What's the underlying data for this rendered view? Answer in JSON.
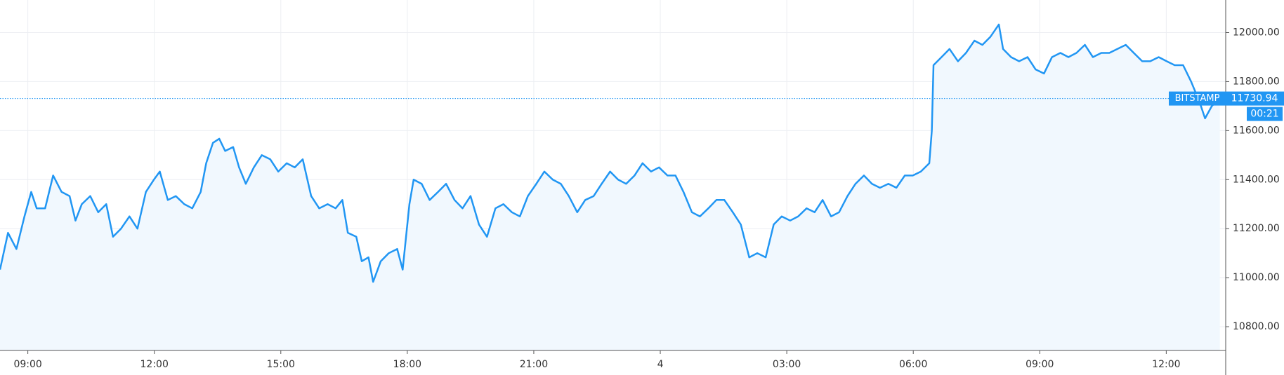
{
  "chart_data": {
    "type": "area",
    "color": "#2196f3",
    "fill": "#f1f8fe",
    "grid": true,
    "exchange": "BITSTAMP",
    "current_price": 11730.94,
    "countdown": "00:21",
    "xlim": [
      -0.66,
      28.41
    ],
    "ylim": [
      10703,
      12133
    ],
    "xticks": [
      {
        "value": 0,
        "label": "09:00"
      },
      {
        "value": 3,
        "label": "12:00"
      },
      {
        "value": 6,
        "label": "15:00"
      },
      {
        "value": 9,
        "label": "18:00"
      },
      {
        "value": 12,
        "label": "21:00"
      },
      {
        "value": 15,
        "label": "4"
      },
      {
        "value": 18,
        "label": "03:00"
      },
      {
        "value": 21,
        "label": "06:00"
      },
      {
        "value": 24,
        "label": "09:00"
      },
      {
        "value": 27,
        "label": "12:00"
      }
    ],
    "yticks": [
      {
        "value": 10800,
        "label": "10800.00"
      },
      {
        "value": 11000,
        "label": "11000.00"
      },
      {
        "value": 11200,
        "label": "11200.00"
      },
      {
        "value": 11400,
        "label": "11400.00"
      },
      {
        "value": 11600,
        "label": "11600.00"
      },
      {
        "value": 11800,
        "label": "11800.00"
      },
      {
        "value": 12000,
        "label": "12000.00"
      }
    ],
    "x": [
      -0.66,
      -0.47,
      -0.27,
      -0.08,
      0.08,
      0.21,
      0.41,
      0.6,
      0.8,
      0.99,
      1.13,
      1.28,
      1.48,
      1.67,
      1.86,
      2.02,
      2.21,
      2.41,
      2.6,
      2.8,
      2.99,
      3.13,
      3.32,
      3.51,
      3.71,
      3.9,
      4.1,
      4.23,
      4.39,
      4.54,
      4.68,
      4.87,
      5.01,
      5.17,
      5.36,
      5.55,
      5.75,
      5.94,
      6.14,
      6.33,
      6.52,
      6.72,
      6.91,
      7.11,
      7.3,
      7.46,
      7.59,
      7.79,
      7.92,
      8.08,
      8.19,
      8.37,
      8.56,
      8.76,
      8.89,
      9.05,
      9.15,
      9.34,
      9.53,
      9.73,
      9.92,
      10.12,
      10.31,
      10.5,
      10.7,
      10.89,
      11.09,
      11.28,
      11.48,
      11.67,
      11.86,
      12.06,
      12.25,
      12.45,
      12.64,
      12.83,
      13.03,
      13.22,
      13.42,
      13.61,
      13.81,
      14.0,
      14.19,
      14.39,
      14.58,
      14.78,
      14.97,
      15.17,
      15.36,
      15.55,
      15.75,
      15.94,
      16.14,
      16.33,
      16.52,
      16.72,
      16.91,
      17.11,
      17.3,
      17.5,
      17.69,
      17.88,
      18.08,
      18.27,
      18.47,
      18.66,
      18.85,
      19.05,
      19.24,
      19.44,
      19.63,
      19.83,
      20.02,
      20.21,
      20.41,
      20.6,
      20.8,
      20.99,
      21.18,
      21.38,
      21.44,
      21.48,
      21.67,
      21.86,
      22.06,
      22.25,
      22.45,
      22.64,
      22.83,
      23.03,
      23.13,
      23.32,
      23.51,
      23.71,
      23.9,
      24.1,
      24.29,
      24.49,
      24.68,
      24.87,
      25.07,
      25.26,
      25.46,
      25.65,
      25.84,
      26.04,
      26.23,
      26.43,
      26.62,
      26.82,
      27.01,
      27.2,
      27.4,
      27.59,
      27.79,
      27.92,
      28.08,
      28.27
    ],
    "values": [
      11033,
      11183,
      11117,
      11250,
      11350,
      11283,
      11283,
      11417,
      11350,
      11333,
      11233,
      11300,
      11333,
      11267,
      11300,
      11167,
      11200,
      11250,
      11200,
      11350,
      11400,
      11433,
      11317,
      11333,
      11300,
      11283,
      11350,
      11467,
      11550,
      11567,
      11517,
      11533,
      11450,
      11383,
      11450,
      11500,
      11483,
      11433,
      11467,
      11450,
      11483,
      11333,
      11283,
      11300,
      11283,
      11317,
      11183,
      11167,
      11067,
      11083,
      10983,
      11067,
      11100,
      11117,
      11033,
      11300,
      11400,
      11383,
      11317,
      11350,
      11383,
      11317,
      11283,
      11333,
      11217,
      11167,
      11283,
      11300,
      11267,
      11250,
      11333,
      11383,
      11433,
      11400,
      11383,
      11333,
      11267,
      11317,
      11333,
      11383,
      11433,
      11400,
      11383,
      11417,
      11467,
      11433,
      11450,
      11417,
      11417,
      11350,
      11267,
      11250,
      11283,
      11317,
      11317,
      11267,
      11217,
      11083,
      11100,
      11083,
      11217,
      11250,
      11233,
      11250,
      11283,
      11267,
      11317,
      11250,
      11267,
      11333,
      11383,
      11417,
      11383,
      11367,
      11383,
      11367,
      11417,
      11417,
      11433,
      11467,
      11600,
      11867,
      11900,
      11933,
      11883,
      11917,
      11967,
      11950,
      11983,
      12033,
      11933,
      11900,
      11883,
      11900,
      11850,
      11833,
      11900,
      11917,
      11900,
      11917,
      11950,
      11900,
      11917,
      11917,
      11933,
      11950,
      11917,
      11883,
      11883,
      11900,
      11883,
      11867,
      11867,
      11800,
      11717,
      11650,
      11700,
      11733
    ]
  }
}
